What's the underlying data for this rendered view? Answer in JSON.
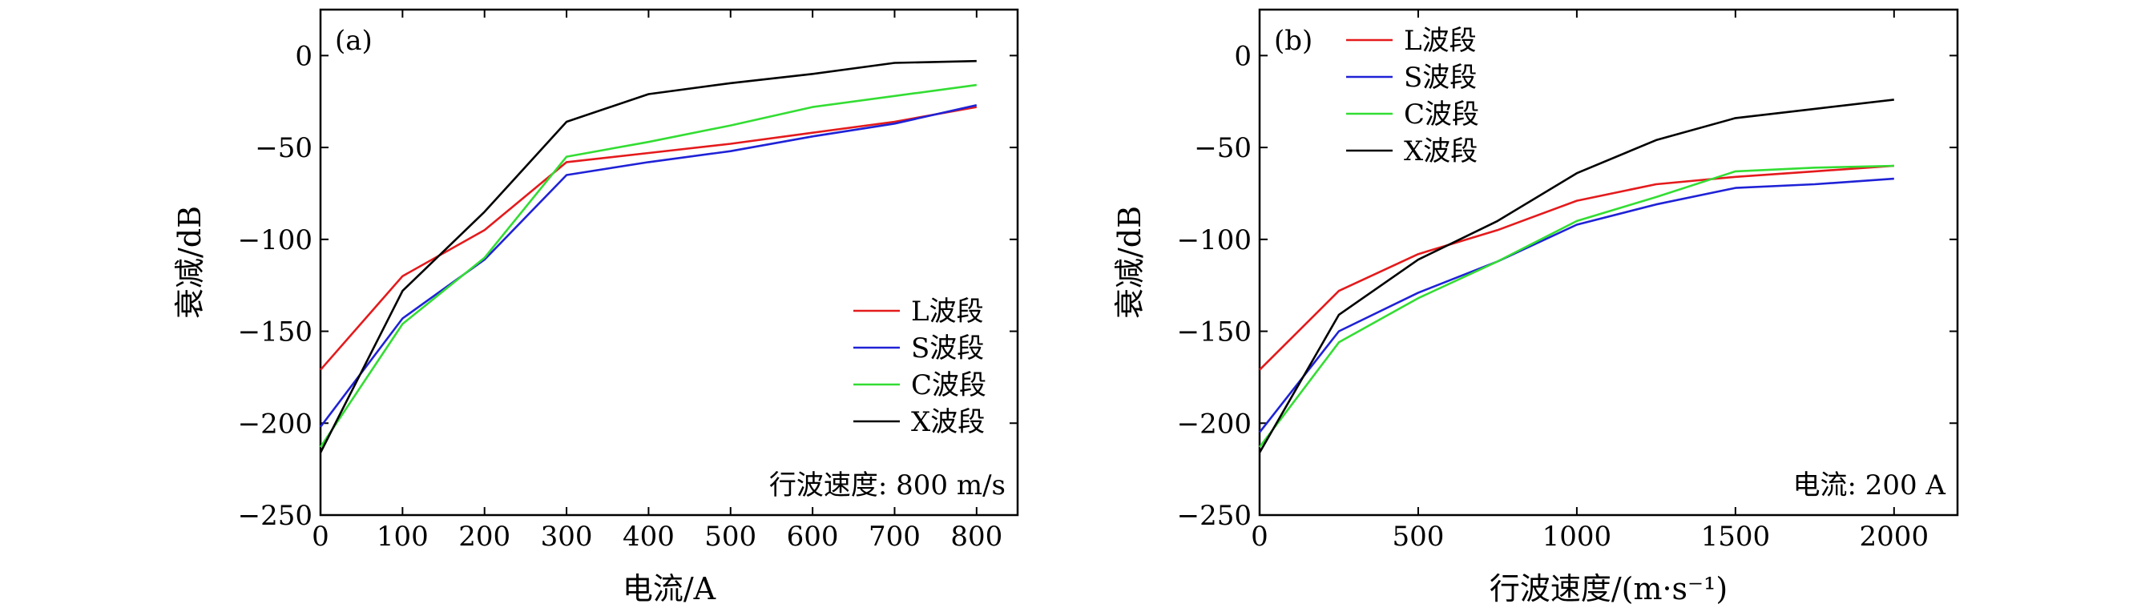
{
  "chart_data": [
    {
      "panel_label": "(a)",
      "type": "line",
      "title": "",
      "xlabel": "电流/A",
      "ylabel": "衰减/dB",
      "xlim": [
        0,
        850
      ],
      "ylim": [
        -250,
        25
      ],
      "xticks": [
        0,
        100,
        200,
        300,
        400,
        500,
        600,
        700,
        800
      ],
      "yticks": [
        0,
        -50,
        -100,
        -150,
        -200,
        -250
      ],
      "xtick_labels": [
        "0",
        "100",
        "200",
        "300",
        "400",
        "500",
        "600",
        "700",
        "800"
      ],
      "ytick_labels": [
        "0",
        "−50",
        "−100",
        "−150",
        "−200",
        "−250"
      ],
      "legend_position": "bottom-right",
      "annotation": "行波速度: 800 m/s",
      "x": [
        0,
        100,
        200,
        300,
        400,
        500,
        600,
        700,
        800
      ],
      "series": [
        {
          "name": "L波段",
          "color": "#e41a1c",
          "values": [
            -171,
            -120,
            -95,
            -58,
            -53,
            -48,
            -42,
            -36,
            -28
          ]
        },
        {
          "name": "S波段",
          "color": "#1f22d6",
          "values": [
            -202,
            -143,
            -111,
            -65,
            -58,
            -52,
            -44,
            -37,
            -27
          ]
        },
        {
          "name": "C波段",
          "color": "#33dd33",
          "values": [
            -213,
            -146,
            -110,
            -55,
            -47,
            -38,
            -28,
            -22,
            -16
          ]
        },
        {
          "name": "X波段",
          "color": "#000000",
          "values": [
            -216,
            -128,
            -85,
            -36,
            -21,
            -15,
            -10,
            -4,
            -3
          ]
        }
      ]
    },
    {
      "panel_label": "(b)",
      "type": "line",
      "title": "",
      "xlabel": "行波速度/(m·s⁻¹)",
      "ylabel": "衰减/dB",
      "xlim": [
        0,
        2200
      ],
      "ylim": [
        -250,
        25
      ],
      "xticks": [
        0,
        500,
        1000,
        1500,
        2000
      ],
      "yticks": [
        0,
        -50,
        -100,
        -150,
        -200,
        -250
      ],
      "xtick_labels": [
        "0",
        "500",
        "1000",
        "1500",
        "2000"
      ],
      "ytick_labels": [
        "0",
        "−50",
        "−100",
        "−150",
        "−200",
        "−250"
      ],
      "legend_position": "top-left",
      "annotation": "电流: 200 A",
      "x": [
        0,
        250,
        500,
        750,
        1000,
        1250,
        1500,
        1750,
        2000
      ],
      "series": [
        {
          "name": "L波段",
          "color": "#e41a1c",
          "values": [
            -171,
            -128,
            -108,
            -95,
            -79,
            -70,
            -66,
            -63,
            -60
          ]
        },
        {
          "name": "S波段",
          "color": "#1f22d6",
          "values": [
            -205,
            -150,
            -129,
            -112,
            -92,
            -81,
            -72,
            -70,
            -67
          ]
        },
        {
          "name": "C波段",
          "color": "#33dd33",
          "values": [
            -213,
            -156,
            -132,
            -112,
            -90,
            -77,
            -63,
            -61,
            -60
          ]
        },
        {
          "name": "X波段",
          "color": "#000000",
          "values": [
            -216,
            -141,
            -111,
            -90,
            -64,
            -46,
            -34,
            -29,
            -24
          ]
        }
      ]
    }
  ]
}
